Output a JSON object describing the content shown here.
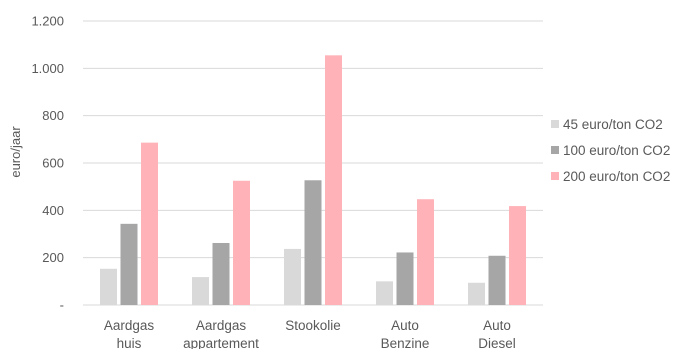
{
  "chart_data": {
    "type": "bar",
    "title": "",
    "xlabel": "",
    "ylabel": "euro/jaar",
    "ylim": [
      0,
      1200
    ],
    "yticks": [
      {
        "value": 0,
        "label": "-"
      },
      {
        "value": 200,
        "label": "200"
      },
      {
        "value": 400,
        "label": "400"
      },
      {
        "value": 600,
        "label": "600"
      },
      {
        "value": 800,
        "label": "800"
      },
      {
        "value": 1000,
        "label": "1.000"
      },
      {
        "value": 1200,
        "label": "1.200"
      }
    ],
    "grid": true,
    "legend_position": "right",
    "categories": [
      {
        "line1": "Aardgas",
        "line2": "huis"
      },
      {
        "line1": "Aardgas",
        "line2": "appartement"
      },
      {
        "line1": "Stookolie",
        "line2": ""
      },
      {
        "line1": "Auto",
        "line2": "Benzine"
      },
      {
        "line1": "Auto",
        "line2": "Diesel"
      }
    ],
    "series": [
      {
        "name": "45 euro/ton CO2",
        "color": "#d9d9d9",
        "values": [
          153,
          118,
          237,
          100,
          94
        ]
      },
      {
        "name": "100 euro/ton CO2",
        "color": "#a6a6a6",
        "values": [
          343,
          262,
          527,
          222,
          208
        ]
      },
      {
        "name": "200 euro/ton CO2",
        "color": "#ffb3b8",
        "values": [
          686,
          525,
          1055,
          447,
          418
        ]
      }
    ]
  }
}
